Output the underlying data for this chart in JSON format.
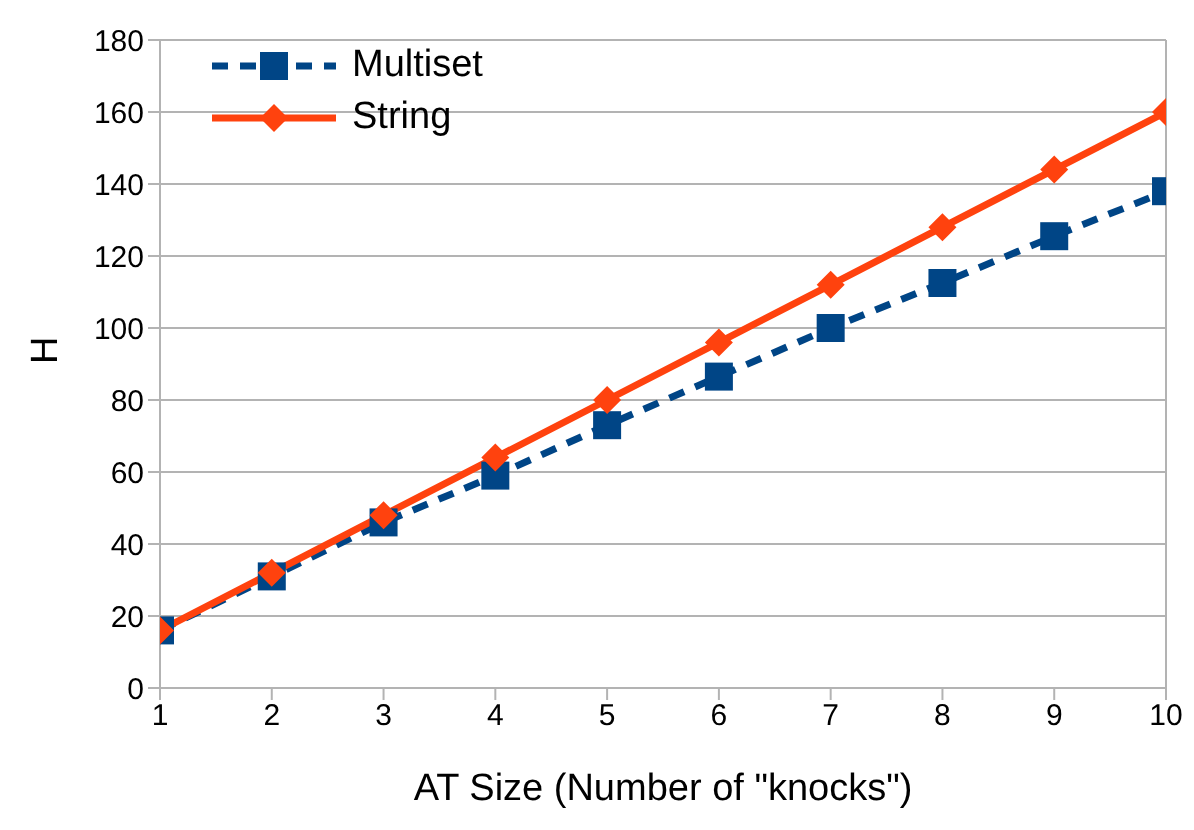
{
  "chart_data": {
    "type": "line",
    "xlabel": "AT Size (Number of \"knocks\")",
    "ylabel": "H",
    "x": [
      1,
      2,
      3,
      4,
      5,
      6,
      7,
      8,
      9,
      10
    ],
    "series": [
      {
        "name": "Multiset",
        "color": "#004586",
        "values": [
          16,
          31,
          46,
          59,
          73,
          86.5,
          100,
          112.5,
          125.5,
          138
        ],
        "marker": "square",
        "line_style": "dashed"
      },
      {
        "name": "String",
        "color": "#ff420e",
        "values": [
          16,
          32,
          48,
          64,
          80,
          96,
          112,
          128,
          144,
          160
        ],
        "marker": "diamond",
        "line_style": "solid"
      }
    ],
    "xlim": [
      1,
      10
    ],
    "xticks": [
      1,
      2,
      3,
      4,
      5,
      6,
      7,
      8,
      9,
      10
    ],
    "ylim": [
      0,
      180
    ],
    "yticks": [
      0,
      20,
      40,
      60,
      80,
      100,
      120,
      140,
      160,
      180
    ],
    "grid": "y",
    "legend": "top left"
  }
}
